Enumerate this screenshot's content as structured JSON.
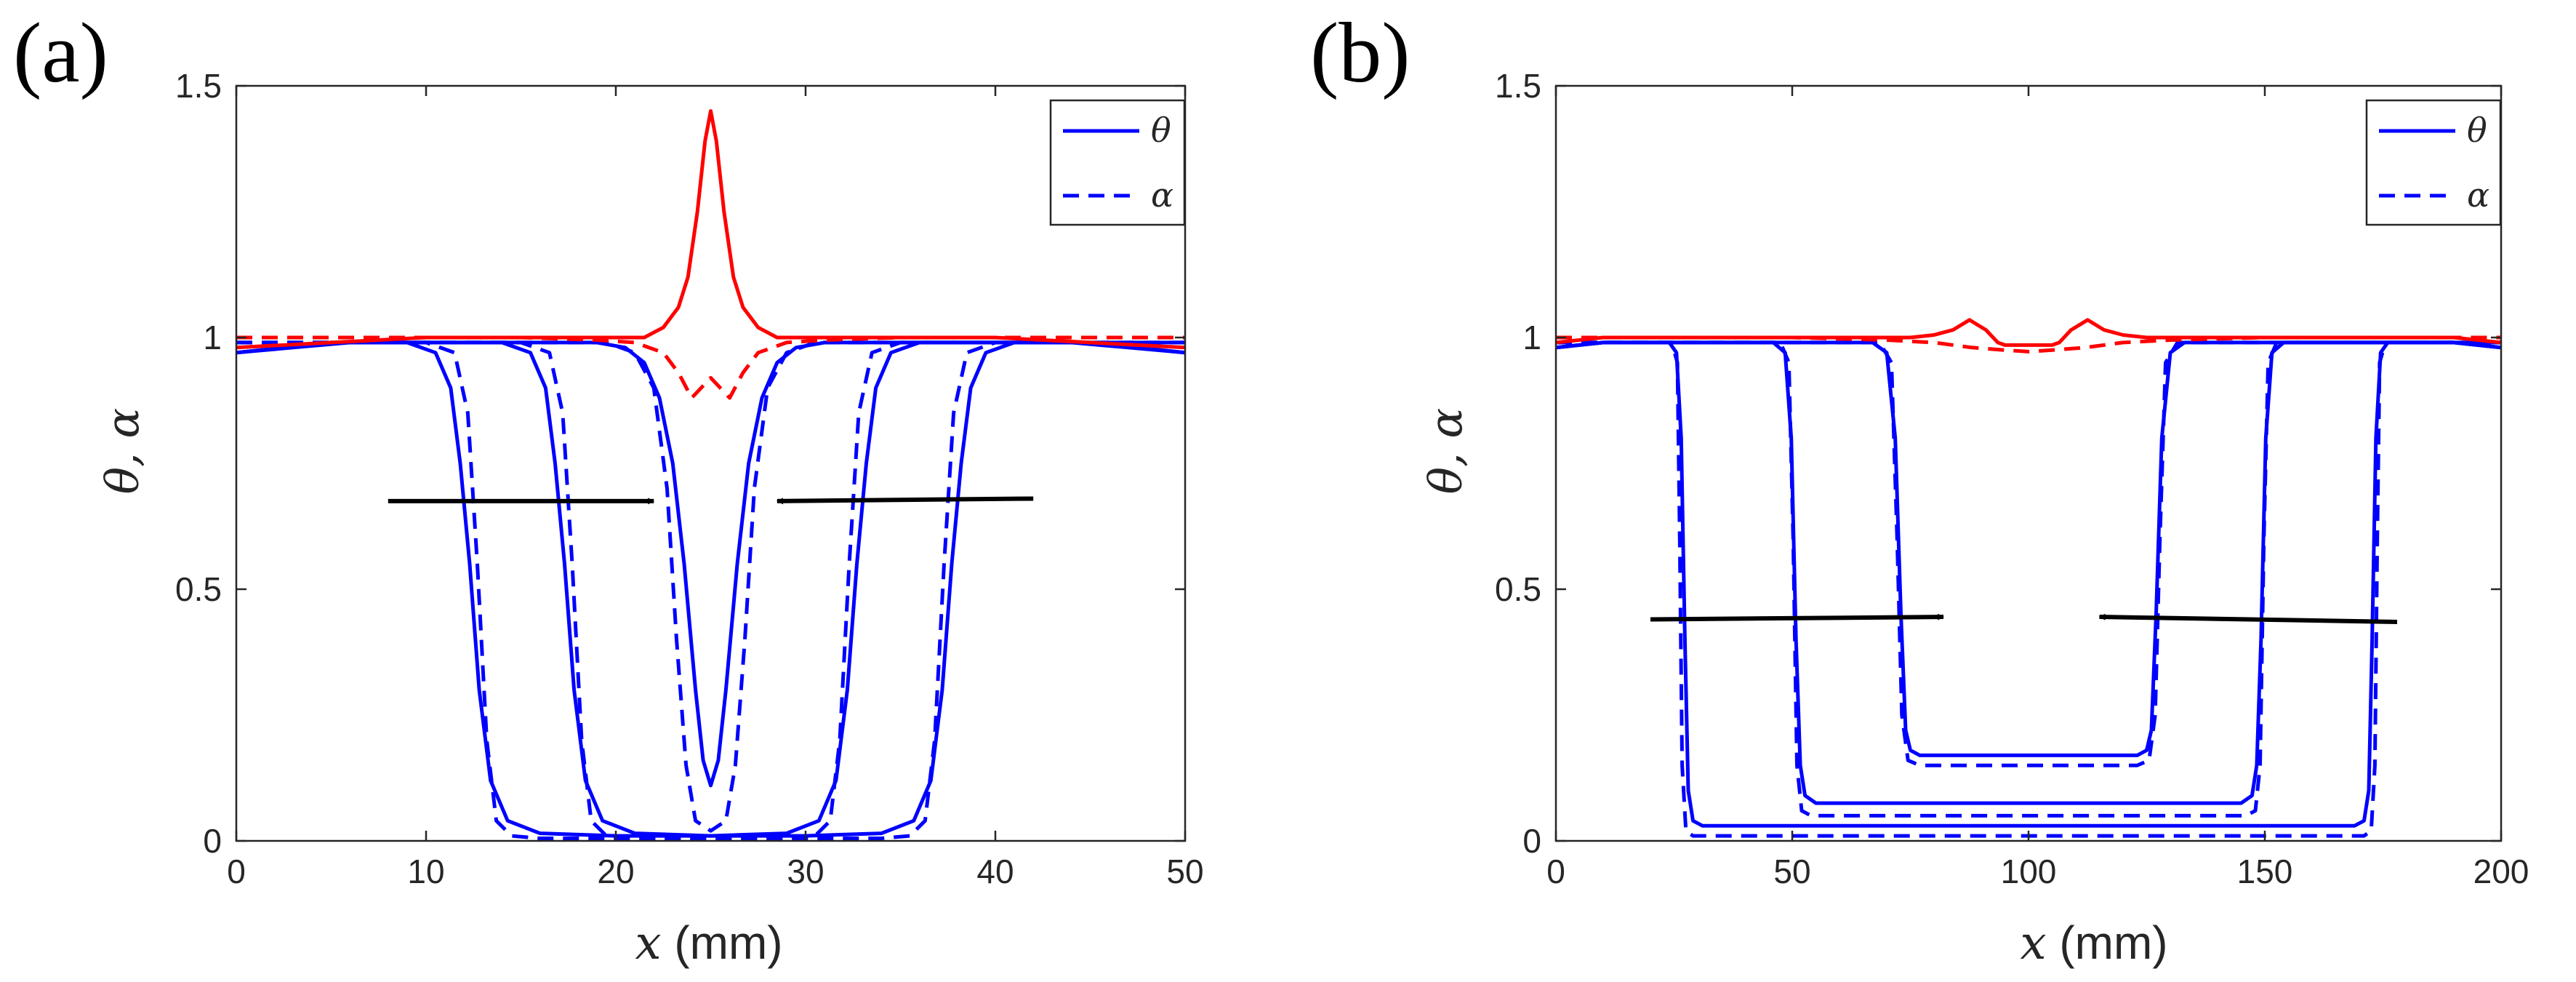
{
  "chart_data": [
    {
      "type": "line",
      "panel_label": "(a)",
      "xlabel_var": "x",
      "xlabel_unit": " (mm)",
      "ylabel": "θ, α",
      "xlim": [
        0,
        50
      ],
      "ylim": [
        0,
        1.5
      ],
      "xticks": [
        0,
        10,
        20,
        30,
        40,
        50
      ],
      "xtick_labels": [
        "0",
        "10",
        "20",
        "30",
        "40",
        "50"
      ],
      "yticks": [
        0,
        0.5,
        1,
        1.5
      ],
      "ytick_labels": [
        "0",
        "0.5",
        "1",
        "1.5"
      ],
      "legend": {
        "position": "top-right",
        "entries": [
          {
            "label": "θ",
            "style": "solid",
            "color": "#0000ff"
          },
          {
            "label": "α",
            "style": "dashed",
            "color": "#0000ff"
          }
        ]
      },
      "colors": {
        "early": "#0000ff",
        "late": "#ff0000",
        "arrow": "#000000"
      },
      "series": [
        {
          "name": "θ early 1",
          "style": "solid",
          "color": "#0000ff",
          "x": [
            0,
            3,
            6,
            9,
            10.5,
            11.3,
            11.8,
            12.3,
            12.8,
            13.4,
            14.3,
            16,
            20,
            25,
            30,
            34,
            35.7,
            36.6,
            37.2,
            37.7,
            38.2,
            38.7,
            39.5,
            41,
            44,
            47,
            50
          ],
          "y": [
            0.97,
            0.98,
            0.99,
            0.99,
            0.97,
            0.9,
            0.75,
            0.55,
            0.3,
            0.12,
            0.04,
            0.015,
            0.01,
            0.01,
            0.01,
            0.015,
            0.04,
            0.12,
            0.3,
            0.55,
            0.75,
            0.9,
            0.97,
            0.99,
            0.99,
            0.98,
            0.97
          ]
        },
        {
          "name": "α early 1",
          "style": "dashed",
          "color": "#0000ff",
          "x": [
            0,
            3,
            6,
            10,
            11.5,
            12.2,
            12.7,
            13.2,
            13.7,
            14.5,
            16,
            20,
            25,
            30,
            34,
            35.5,
            36.3,
            36.8,
            37.3,
            37.8,
            38.5,
            40,
            44,
            47,
            50
          ],
          "y": [
            0.99,
            0.99,
            0.99,
            0.99,
            0.97,
            0.85,
            0.55,
            0.2,
            0.04,
            0.01,
            0.005,
            0.005,
            0.005,
            0.005,
            0.005,
            0.01,
            0.04,
            0.2,
            0.55,
            0.85,
            0.97,
            0.99,
            0.99,
            0.99,
            0.99
          ]
        },
        {
          "name": "θ early 2",
          "style": "solid",
          "color": "#0000ff",
          "x": [
            0,
            5,
            10,
            14,
            15.5,
            16.3,
            16.8,
            17.3,
            17.8,
            18.4,
            19.3,
            21,
            25,
            29,
            30.7,
            31.6,
            32.2,
            32.7,
            33.2,
            33.7,
            34.5,
            36,
            40,
            45,
            50
          ],
          "y": [
            0.97,
            0.99,
            0.99,
            0.99,
            0.97,
            0.9,
            0.75,
            0.55,
            0.3,
            0.12,
            0.04,
            0.015,
            0.01,
            0.015,
            0.04,
            0.12,
            0.3,
            0.55,
            0.75,
            0.9,
            0.97,
            0.99,
            0.99,
            0.99,
            0.97
          ]
        },
        {
          "name": "α early 2",
          "style": "dashed",
          "color": "#0000ff",
          "x": [
            0,
            5,
            10,
            15,
            16.5,
            17.2,
            17.7,
            18.2,
            18.7,
            19.5,
            21,
            25,
            29,
            30.5,
            31.3,
            31.8,
            32.3,
            32.8,
            33.5,
            35,
            40,
            45,
            50
          ],
          "y": [
            0.99,
            0.99,
            0.99,
            0.99,
            0.97,
            0.85,
            0.55,
            0.2,
            0.04,
            0.01,
            0.005,
            0.005,
            0.005,
            0.01,
            0.04,
            0.2,
            0.55,
            0.85,
            0.97,
            0.99,
            0.99,
            0.99,
            0.99
          ]
        },
        {
          "name": "θ early 3",
          "style": "solid",
          "color": "#0000ff",
          "x": [
            0,
            5,
            10,
            15,
            19,
            20.5,
            21.5,
            22.3,
            23,
            23.6,
            24.2,
            24.6,
            25,
            25.4,
            25.8,
            26.4,
            27,
            27.7,
            28.5,
            29.5,
            31,
            35,
            40,
            45,
            50
          ],
          "y": [
            0.97,
            0.99,
            0.99,
            0.99,
            0.99,
            0.98,
            0.95,
            0.88,
            0.75,
            0.55,
            0.3,
            0.16,
            0.11,
            0.16,
            0.3,
            0.55,
            0.75,
            0.88,
            0.95,
            0.98,
            0.99,
            0.99,
            0.99,
            0.99,
            0.97
          ]
        },
        {
          "name": "α early 3",
          "style": "dashed",
          "color": "#0000ff",
          "x": [
            0,
            5,
            10,
            15,
            19.5,
            21,
            22,
            22.7,
            23.2,
            23.7,
            24.2,
            25,
            25.8,
            26.3,
            26.8,
            27.3,
            28,
            29,
            30.5,
            35,
            40,
            45,
            50
          ],
          "y": [
            0.99,
            0.99,
            0.99,
            0.99,
            0.99,
            0.97,
            0.9,
            0.7,
            0.4,
            0.15,
            0.04,
            0.02,
            0.04,
            0.15,
            0.4,
            0.7,
            0.9,
            0.97,
            0.99,
            0.99,
            0.99,
            0.99,
            0.99
          ]
        },
        {
          "name": "θ late",
          "style": "solid",
          "color": "#ff0000",
          "x": [
            0,
            5,
            10,
            15,
            18,
            20,
            21.5,
            22.5,
            23.3,
            23.8,
            24.3,
            24.7,
            25,
            25.3,
            25.7,
            26.2,
            26.7,
            27.5,
            28.5,
            30,
            32,
            35,
            40,
            45,
            50
          ],
          "y": [
            0.98,
            0.99,
            1.0,
            1.0,
            1.0,
            1.0,
            1.0,
            1.02,
            1.06,
            1.12,
            1.25,
            1.39,
            1.45,
            1.39,
            1.25,
            1.12,
            1.06,
            1.02,
            1.0,
            1.0,
            1.0,
            1.0,
            1.0,
            0.99,
            0.98
          ]
        },
        {
          "name": "α late",
          "style": "dashed",
          "color": "#ff0000",
          "x": [
            0,
            5,
            10,
            15,
            19,
            21,
            22.5,
            23.3,
            24,
            24.5,
            25,
            25.5,
            26,
            26.7,
            27.5,
            29,
            31,
            35,
            40,
            45,
            50
          ],
          "y": [
            1.0,
            1.0,
            1.0,
            1.0,
            0.995,
            0.99,
            0.97,
            0.93,
            0.88,
            0.9,
            0.92,
            0.9,
            0.88,
            0.93,
            0.97,
            0.99,
            0.995,
            1.0,
            1.0,
            1.0,
            1.0
          ]
        }
      ],
      "arrows": [
        {
          "x1": 8,
          "y1": 0.675,
          "x2": 22,
          "y2": 0.675
        },
        {
          "x1": 42,
          "y1": 0.68,
          "x2": 28.5,
          "y2": 0.675
        }
      ]
    },
    {
      "type": "line",
      "panel_label": "(b)",
      "xlabel_var": "x",
      "xlabel_unit": " (mm)",
      "ylabel": "θ, α",
      "xlim": [
        0,
        200
      ],
      "ylim": [
        0,
        1.5
      ],
      "xticks": [
        0,
        50,
        100,
        150,
        200
      ],
      "xtick_labels": [
        "0",
        "50",
        "100",
        "150",
        "200"
      ],
      "yticks": [
        0,
        0.5,
        1,
        1.5
      ],
      "ytick_labels": [
        "0",
        "0.5",
        "1",
        "1.5"
      ],
      "legend": {
        "position": "top-right",
        "entries": [
          {
            "label": "θ",
            "style": "solid",
            "color": "#0000ff"
          },
          {
            "label": "α",
            "style": "dashed",
            "color": "#0000ff"
          }
        ]
      },
      "colors": {
        "early": "#0000ff",
        "late": "#ff0000",
        "arrow": "#000000"
      },
      "series": [
        {
          "name": "θ early 1",
          "style": "solid",
          "color": "#0000ff",
          "x": [
            0,
            10,
            20,
            24,
            25.5,
            26.5,
            27.3,
            28,
            29,
            31,
            50,
            100,
            150,
            169,
            171,
            172,
            172.7,
            173.5,
            174.5,
            176,
            180,
            190,
            200
          ],
          "y": [
            0.98,
            0.99,
            0.99,
            0.99,
            0.97,
            0.8,
            0.4,
            0.1,
            0.04,
            0.03,
            0.03,
            0.03,
            0.03,
            0.03,
            0.04,
            0.1,
            0.4,
            0.8,
            0.97,
            0.99,
            0.99,
            0.99,
            0.98
          ]
        },
        {
          "name": "α early 1",
          "style": "dashed",
          "color": "#0000ff",
          "x": [
            0,
            10,
            20,
            24.5,
            25.7,
            26.2,
            26.7,
            27.5,
            29,
            50,
            100,
            150,
            171,
            172.5,
            173.3,
            173.8,
            174.3,
            175.5,
            180,
            190,
            200
          ],
          "y": [
            0.99,
            0.99,
            0.99,
            0.99,
            0.95,
            0.6,
            0.15,
            0.02,
            0.01,
            0.01,
            0.01,
            0.01,
            0.01,
            0.02,
            0.15,
            0.6,
            0.95,
            0.99,
            0.99,
            0.99,
            0.99
          ]
        },
        {
          "name": "θ early 2",
          "style": "solid",
          "color": "#0000ff",
          "x": [
            0,
            10,
            30,
            46,
            48.5,
            49.8,
            50.8,
            51.7,
            52.7,
            55,
            100,
            145,
            147.3,
            148.3,
            149.2,
            150.2,
            151.5,
            154,
            170,
            190,
            200
          ],
          "y": [
            0.98,
            0.99,
            0.99,
            0.99,
            0.97,
            0.8,
            0.4,
            0.15,
            0.09,
            0.075,
            0.075,
            0.075,
            0.09,
            0.15,
            0.4,
            0.8,
            0.97,
            0.99,
            0.99,
            0.99,
            0.98
          ]
        },
        {
          "name": "α early 2",
          "style": "dashed",
          "color": "#0000ff",
          "x": [
            0,
            10,
            30,
            47.5,
            49.3,
            50.2,
            51,
            52,
            54,
            100,
            146,
            148,
            149,
            149.8,
            150.7,
            152.5,
            170,
            190,
            200
          ],
          "y": [
            0.99,
            0.99,
            0.99,
            0.99,
            0.95,
            0.6,
            0.15,
            0.06,
            0.05,
            0.05,
            0.05,
            0.06,
            0.15,
            0.6,
            0.95,
            0.99,
            0.99,
            0.99,
            0.99
          ]
        },
        {
          "name": "θ early 3",
          "style": "solid",
          "color": "#0000ff",
          "x": [
            0,
            10,
            50,
            67,
            70,
            71.8,
            73,
            74,
            75,
            77,
            100,
            123,
            125,
            126,
            127,
            128.2,
            130,
            133,
            150,
            190,
            200
          ],
          "y": [
            0.98,
            0.99,
            0.99,
            0.99,
            0.97,
            0.8,
            0.45,
            0.22,
            0.18,
            0.17,
            0.17,
            0.17,
            0.18,
            0.22,
            0.45,
            0.8,
            0.97,
            0.99,
            0.99,
            0.99,
            0.98
          ]
        },
        {
          "name": "α early 3",
          "style": "dashed",
          "color": "#0000ff",
          "x": [
            0,
            10,
            50,
            68.5,
            71,
            72.2,
            73.2,
            74.5,
            77,
            100,
            123,
            125.5,
            126.8,
            127.8,
            129,
            131.5,
            150,
            190,
            200
          ],
          "y": [
            0.99,
            0.99,
            0.99,
            0.99,
            0.95,
            0.6,
            0.25,
            0.16,
            0.15,
            0.15,
            0.15,
            0.16,
            0.25,
            0.6,
            0.95,
            0.99,
            0.99,
            0.99,
            0.99
          ]
        },
        {
          "name": "θ late",
          "style": "solid",
          "color": "#ff0000",
          "x": [
            0,
            10,
            20,
            40,
            60,
            75,
            80,
            84,
            87.5,
            91,
            93.5,
            95,
            100,
            105,
            106.5,
            109,
            112.5,
            116,
            120,
            125,
            140,
            160,
            180,
            190,
            200
          ],
          "y": [
            0.99,
            1.0,
            1.0,
            1.0,
            1.0,
            1.0,
            1.005,
            1.015,
            1.035,
            1.015,
            0.99,
            0.985,
            0.985,
            0.985,
            0.99,
            1.015,
            1.035,
            1.015,
            1.005,
            1.0,
            1.0,
            1.0,
            1.0,
            1.0,
            0.99
          ]
        },
        {
          "name": "α late",
          "style": "dashed",
          "color": "#ff0000",
          "x": [
            0,
            20,
            50,
            70,
            80,
            88,
            95,
            100,
            105,
            112,
            120,
            130,
            150,
            180,
            200
          ],
          "y": [
            1.0,
            1.0,
            1.0,
            0.995,
            0.99,
            0.98,
            0.975,
            0.972,
            0.975,
            0.98,
            0.99,
            0.995,
            1.0,
            1.0,
            1.0
          ]
        }
      ],
      "arrows": [
        {
          "x1": 20,
          "y1": 0.44,
          "x2": 82,
          "y2": 0.445
        },
        {
          "x1": 178,
          "y1": 0.435,
          "x2": 115,
          "y2": 0.445
        }
      ]
    }
  ]
}
